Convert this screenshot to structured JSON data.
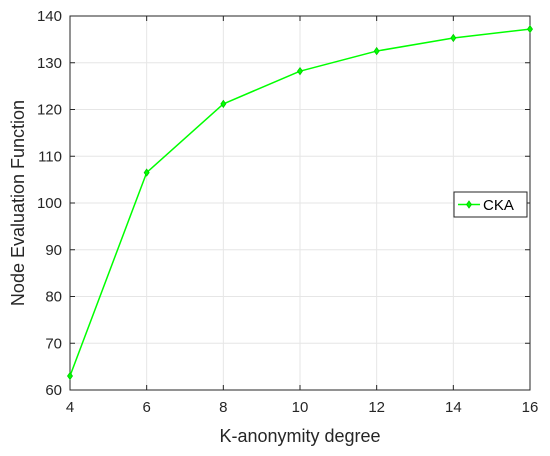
{
  "chart_data": {
    "type": "line",
    "xlabel": "K-anonymity degree",
    "ylabel": "Node Evaluation Function",
    "x": [
      4,
      6,
      8,
      10,
      12,
      14,
      16
    ],
    "series": [
      {
        "name": "CKA",
        "values": [
          63,
          106.5,
          121.2,
          128.2,
          132.5,
          135.3,
          137.2
        ],
        "color": "#00ff00",
        "marker": "diamond"
      }
    ],
    "xlim": [
      4,
      16
    ],
    "ylim": [
      60,
      140
    ],
    "xticks": [
      4,
      6,
      8,
      10,
      12,
      14,
      16
    ],
    "yticks": [
      60,
      70,
      80,
      90,
      100,
      110,
      120,
      130,
      140
    ],
    "grid": true,
    "legend_position": "right"
  }
}
